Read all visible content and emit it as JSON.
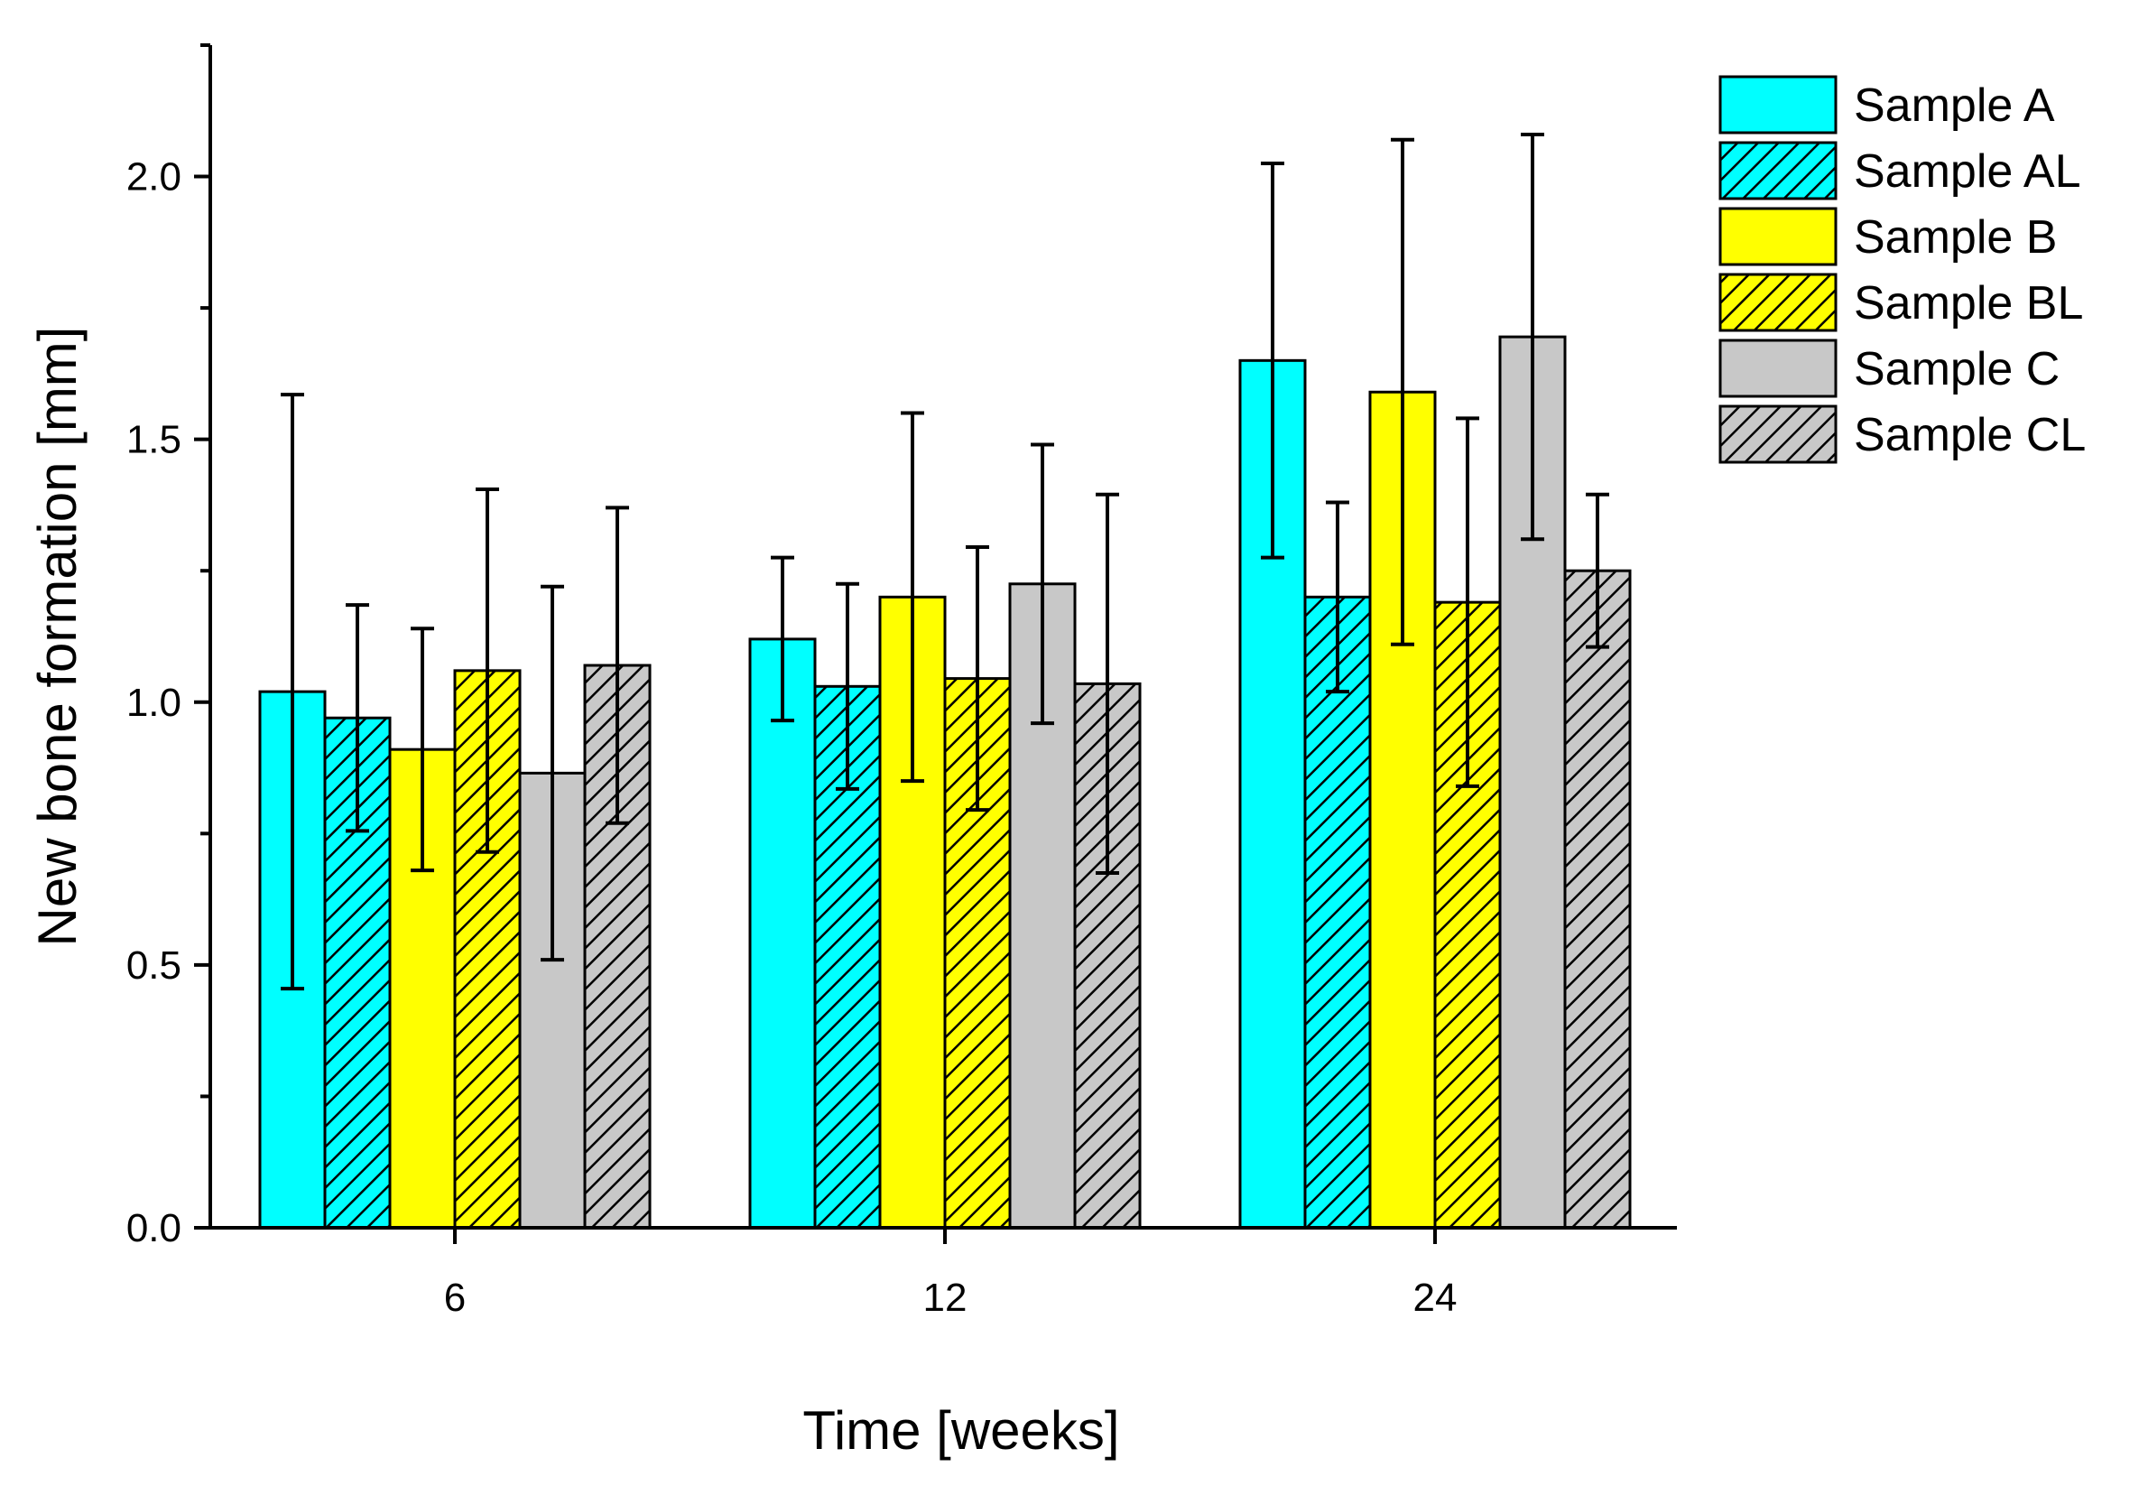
{
  "chart_data": {
    "type": "bar",
    "title": "",
    "xlabel": "Time [weeks]",
    "ylabel": "New bone formation [mm]",
    "categories": [
      "6",
      "12",
      "24"
    ],
    "ylim": [
      0,
      2.25
    ],
    "yticks": [
      0.0,
      0.5,
      1.0,
      1.5,
      2.0
    ],
    "ytick_labels": [
      "0.0",
      "0.5",
      "1.0",
      "1.5",
      "2.0"
    ],
    "series": [
      {
        "name": "Sample A",
        "color": "#00FFFF",
        "hatched": false,
        "values": [
          1.02,
          1.12,
          1.65
        ],
        "errors": [
          0.565,
          0.155,
          0.375
        ]
      },
      {
        "name": "Sample AL",
        "color": "#00FFFF",
        "hatched": true,
        "values": [
          0.97,
          1.03,
          1.2
        ],
        "errors": [
          0.215,
          0.195,
          0.18
        ]
      },
      {
        "name": "Sample B",
        "color": "#FFFF00",
        "hatched": false,
        "values": [
          0.91,
          1.2,
          1.59
        ],
        "errors": [
          0.23,
          0.35,
          0.48
        ]
      },
      {
        "name": "Sample BL",
        "color": "#FFFF00",
        "hatched": true,
        "values": [
          1.06,
          1.045,
          1.19
        ],
        "errors": [
          0.345,
          0.25,
          0.35
        ]
      },
      {
        "name": "Sample C",
        "color": "#C8C8C8",
        "hatched": false,
        "values": [
          0.865,
          1.225,
          1.695
        ],
        "errors": [
          0.355,
          0.265,
          0.385
        ]
      },
      {
        "name": "Sample CL",
        "color": "#C8C8C8",
        "hatched": true,
        "values": [
          1.07,
          1.035,
          1.25
        ],
        "errors": [
          0.3,
          0.36,
          0.145
        ]
      }
    ],
    "legend_position": "top-right"
  }
}
